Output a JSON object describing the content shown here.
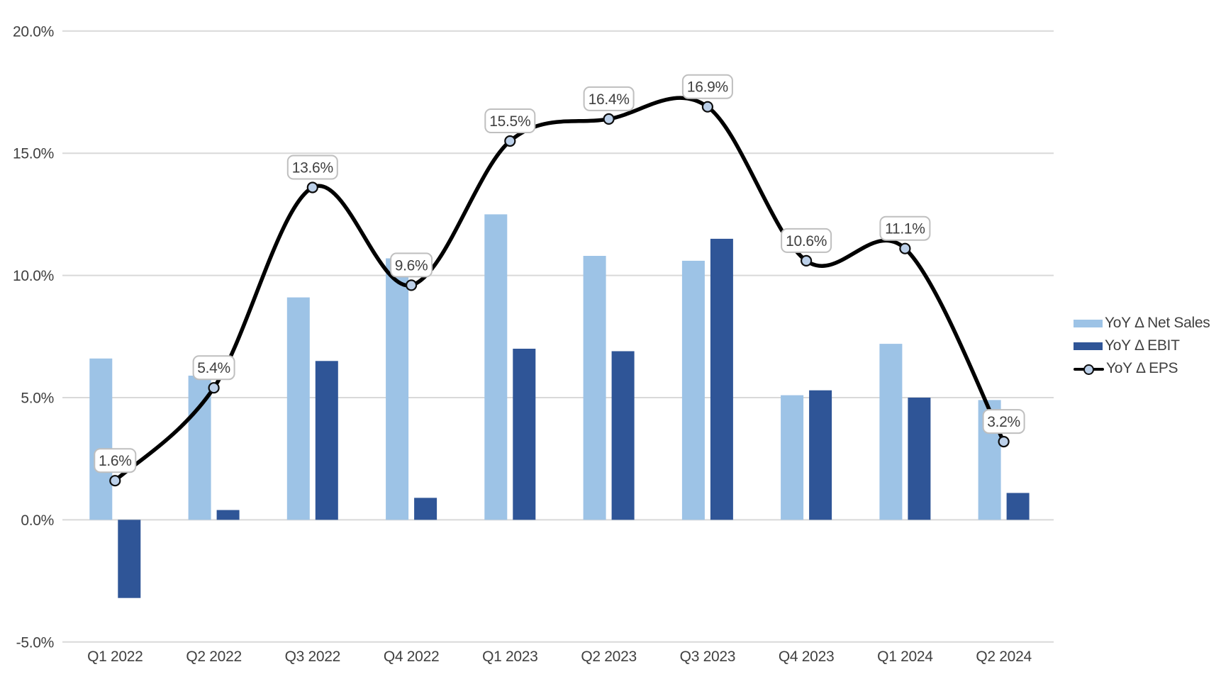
{
  "chart_data": {
    "type": "combo",
    "categories": [
      "Q1 2022",
      "Q2 2022",
      "Q3 2022",
      "Q4 2022",
      "Q1 2023",
      "Q2 2023",
      "Q3 2023",
      "Q4 2023",
      "Q1 2024",
      "Q2 2024"
    ],
    "series": [
      {
        "name": "YoY Δ Net Sales",
        "type": "bar",
        "color": "#9DC3E6",
        "values": [
          6.6,
          5.9,
          9.1,
          10.7,
          12.5,
          10.8,
          10.6,
          5.1,
          7.2,
          4.9
        ]
      },
      {
        "name": "YoY Δ EBIT",
        "type": "bar",
        "color": "#2F5597",
        "values": [
          -3.2,
          0.4,
          6.5,
          0.9,
          7.0,
          6.9,
          11.5,
          5.3,
          5.0,
          1.1
        ]
      },
      {
        "name": "YoY Δ EPS",
        "type": "line",
        "color": "#000000",
        "marker_fill": "#BCD0E9",
        "marker_stroke": "#0d0d0d",
        "values": [
          1.6,
          5.4,
          13.6,
          9.6,
          15.5,
          16.4,
          16.9,
          10.6,
          11.1,
          3.2
        ],
        "labels": [
          "1.6%",
          "5.4%",
          "13.6%",
          "9.6%",
          "15.5%",
          "16.4%",
          "16.9%",
          "10.6%",
          "11.1%",
          "3.2%"
        ]
      }
    ],
    "ylim": [
      -5,
      20
    ],
    "ytick_values": [
      20,
      15,
      10,
      5,
      0,
      -5
    ],
    "ytick_labels": [
      "20.0%",
      "15.0%",
      "10.0%",
      "5.0%",
      "0.0%",
      "-5.0%"
    ],
    "grid": true,
    "legend_position": "right",
    "colors": {
      "gridline": "#D9D9D9",
      "axis_text": "#404040",
      "callout_fill": "#FFFFFF",
      "callout_border": "#BFBFBF",
      "callout_text": "#404040"
    }
  }
}
